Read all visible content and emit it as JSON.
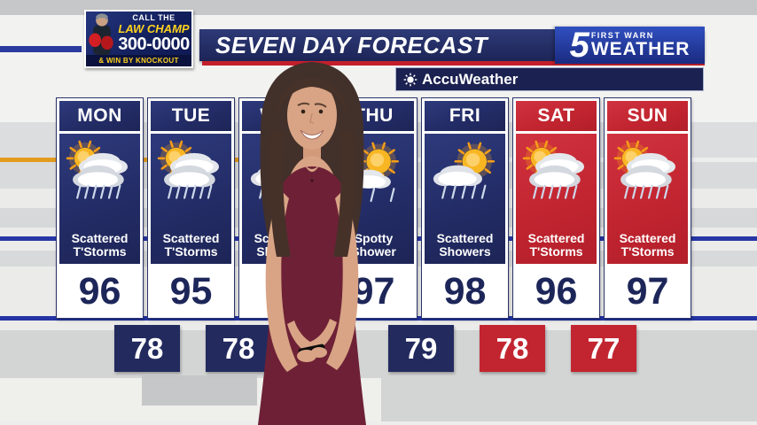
{
  "colors": {
    "navy": "#232c66",
    "red": "#c22530",
    "banner_navy": "#1d2557",
    "red_underline": "#c31f2b",
    "logo_blue": "#2743ae",
    "ad_gold": "#ffd21e",
    "temp_text": "#1d2659",
    "orange_stripe": "#e39b1d",
    "blue_stripe": "#2737a6"
  },
  "ad": {
    "line1": "CALL THE",
    "line2": "LAW CHAMP",
    "line3": "300-0000",
    "line4": "& WIN BY KNOCKOUT"
  },
  "header": {
    "title": "SEVEN DAY FORECAST",
    "station_number": "5",
    "station_line1": "FIRST WARN",
    "station_line2": "WEATHER",
    "provider": "AccuWeather"
  },
  "forecast": {
    "days": [
      {
        "label": "MON",
        "condition": "Scattered T'Storms",
        "high": "96",
        "theme": "navy",
        "icon": "scattered-tstorms"
      },
      {
        "label": "TUE",
        "condition": "Scattered T'Storms",
        "high": "95",
        "theme": "navy",
        "icon": "scattered-tstorms"
      },
      {
        "label": "WED",
        "condition": "Scattered Showers",
        "high": "",
        "theme": "navy",
        "icon": "scattered-showers"
      },
      {
        "label": "THU",
        "condition": "Spotty Shower",
        "high": "97",
        "theme": "navy",
        "icon": "spotty-shower"
      },
      {
        "label": "FRI",
        "condition": "Scattered Showers",
        "high": "98",
        "theme": "navy",
        "icon": "scattered-showers"
      },
      {
        "label": "SAT",
        "condition": "Scattered T'Storms",
        "high": "96",
        "theme": "red",
        "icon": "scattered-tstorms"
      },
      {
        "label": "SUN",
        "condition": "Scattered T'Storms",
        "high": "97",
        "theme": "red",
        "icon": "scattered-tstorms"
      }
    ],
    "lows": [
      {
        "value": "78",
        "boundary": 0,
        "theme": "navy"
      },
      {
        "value": "78",
        "boundary": 1,
        "theme": "navy"
      },
      {
        "value": "79",
        "boundary": 3,
        "theme": "navy"
      },
      {
        "value": "78",
        "boundary": 4,
        "theme": "red"
      },
      {
        "value": "77",
        "boundary": 5,
        "theme": "red"
      }
    ]
  }
}
